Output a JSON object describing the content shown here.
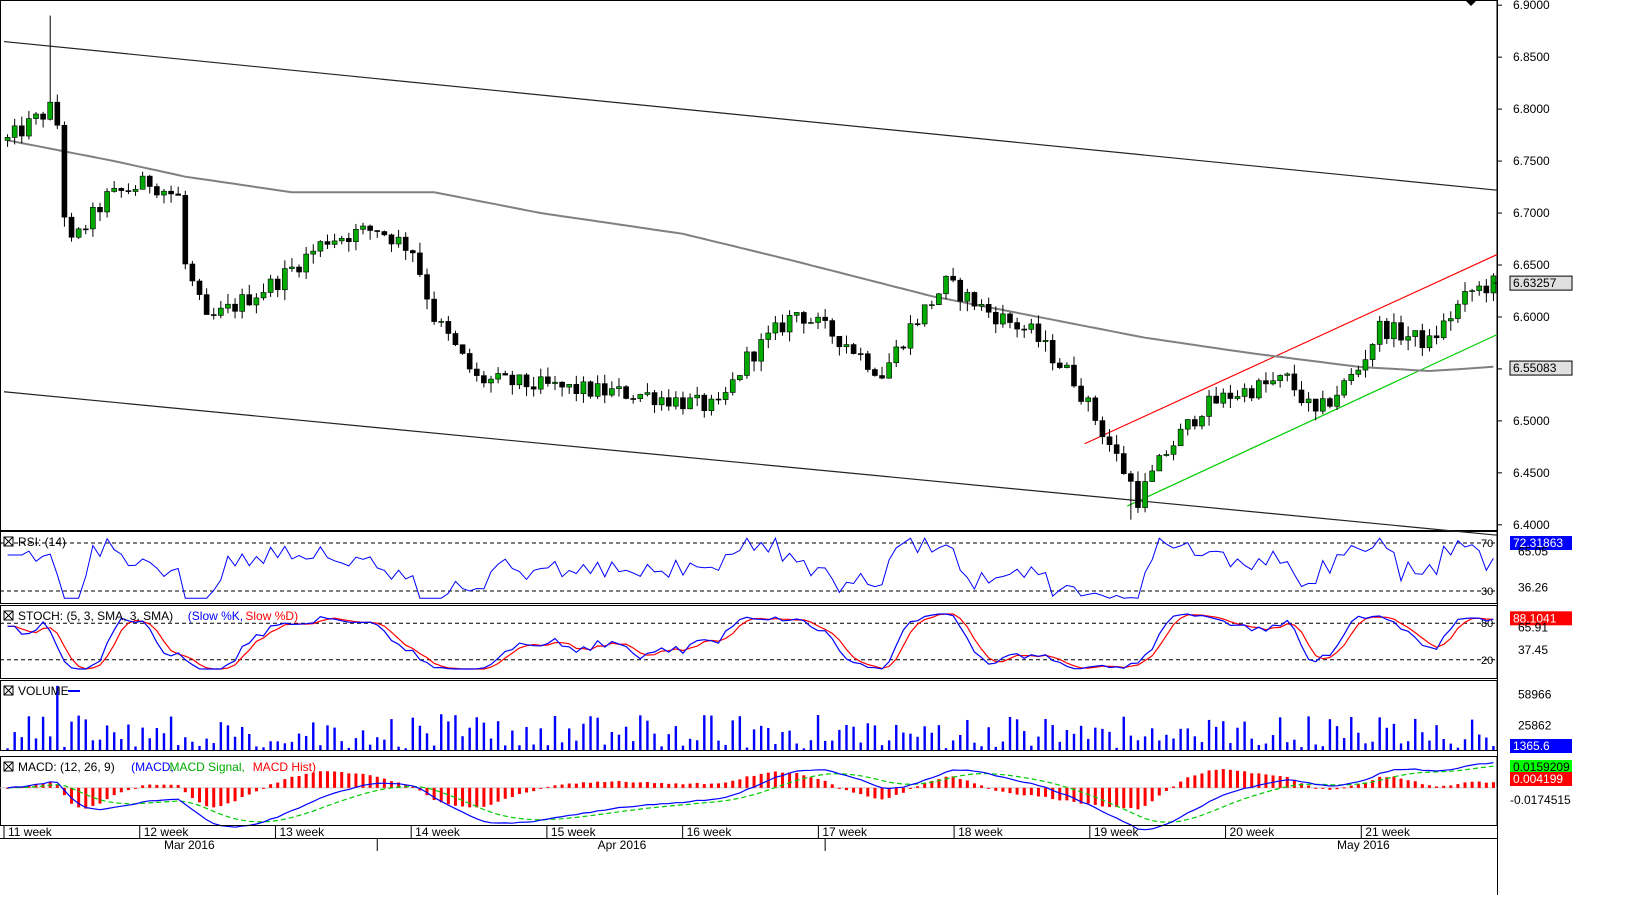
{
  "chart_data": {
    "type": "candlestick",
    "main": {
      "yticks": [
        "6.9000",
        "6.8500",
        "6.8000",
        "6.7500",
        "6.7000",
        "6.6500",
        "6.6000",
        "6.5500",
        "6.5000",
        "6.4500",
        "6.4000"
      ],
      "ylim": [
        6.395,
        6.905
      ],
      "badges": [
        {
          "label": "6.63257",
          "value": 6.63257,
          "bg": "#e0e0e0",
          "fg": "#000000"
        },
        {
          "label": "6.55083",
          "value": 6.55083,
          "bg": "#e0e0e0",
          "fg": "#000000"
        }
      ],
      "candle_count": 210,
      "ohlc_start": 6.77,
      "anchors": [
        [
          0,
          6.77
        ],
        [
          6,
          6.8
        ],
        [
          7,
          6.785
        ],
        [
          8,
          6.7
        ],
        [
          9,
          6.67
        ],
        [
          14,
          6.715
        ],
        [
          20,
          6.73
        ],
        [
          24,
          6.715
        ],
        [
          25,
          6.65
        ],
        [
          28,
          6.595
        ],
        [
          33,
          6.615
        ],
        [
          38,
          6.635
        ],
        [
          45,
          6.675
        ],
        [
          52,
          6.685
        ],
        [
          57,
          6.665
        ],
        [
          60,
          6.6
        ],
        [
          66,
          6.54
        ],
        [
          80,
          6.53
        ],
        [
          90,
          6.525
        ],
        [
          100,
          6.512
        ],
        [
          104,
          6.56
        ],
        [
          111,
          6.605
        ],
        [
          118,
          6.575
        ],
        [
          123,
          6.545
        ],
        [
          127,
          6.59
        ],
        [
          132,
          6.632
        ],
        [
          138,
          6.605
        ],
        [
          144,
          6.585
        ],
        [
          150,
          6.54
        ],
        [
          154,
          6.49
        ],
        [
          158,
          6.44
        ],
        [
          159,
          6.425
        ],
        [
          163,
          6.47
        ],
        [
          168,
          6.512
        ],
        [
          172,
          6.525
        ],
        [
          180,
          6.54
        ],
        [
          184,
          6.505
        ],
        [
          190,
          6.55
        ],
        [
          193,
          6.59
        ],
        [
          200,
          6.575
        ],
        [
          204,
          6.61
        ],
        [
          206,
          6.625
        ],
        [
          209,
          6.632
        ]
      ],
      "ma_anchors": [
        [
          0,
          6.77
        ],
        [
          15,
          6.75
        ],
        [
          25,
          6.735
        ],
        [
          40,
          6.72
        ],
        [
          60,
          6.72
        ],
        [
          75,
          6.7
        ],
        [
          95,
          6.68
        ],
        [
          110,
          6.655
        ],
        [
          130,
          6.62
        ],
        [
          145,
          6.6
        ],
        [
          160,
          6.58
        ],
        [
          175,
          6.565
        ],
        [
          190,
          6.552
        ],
        [
          200,
          6.548
        ],
        [
          209,
          6.552
        ]
      ],
      "trendlines": [
        {
          "x1": 0,
          "y1": 6.865,
          "x2": 209,
          "y2": 6.722,
          "color": "#222222"
        },
        {
          "x1": 0,
          "y1": 6.528,
          "x2": 209,
          "y2": 6.39,
          "color": "#222222"
        },
        {
          "x1": 152,
          "y1": 6.478,
          "x2": 209,
          "y2": 6.66,
          "color": "#ff0000"
        },
        {
          "x1": 158,
          "y1": 6.418,
          "x2": 209,
          "y2": 6.583,
          "color": "#00cc00"
        }
      ]
    },
    "rsi": {
      "label": "RSI: (14)",
      "levels": [
        70,
        30
      ],
      "ticks": [
        "65.05",
        "36.26"
      ],
      "badge": {
        "label": "72.31863",
        "bg": "#0000ff",
        "fg": "#ffffff"
      },
      "ylim": [
        20,
        80
      ]
    },
    "stoch": {
      "label": "STOCH: (5, 3, SMA, 3, SMA)",
      "series": [
        {
          "name": "Slow %K",
          "color": "#0000ff"
        },
        {
          "name": "Slow %D",
          "color": "#ff0000"
        }
      ],
      "levels": [
        80,
        20
      ],
      "ticks": [
        "65.91",
        "37.45"
      ],
      "badge": {
        "label": "88.1041",
        "bg": "#ff0000",
        "fg": "#ffffff"
      },
      "ylim": [
        0,
        100
      ]
    },
    "volume": {
      "label": "VOLUME",
      "ticks": [
        "58966",
        "25862"
      ],
      "badge": {
        "label": "1365.6",
        "bg": "#0000ff",
        "fg": "#ffffff"
      },
      "ylim": [
        0,
        70000
      ]
    },
    "macd": {
      "label": "MACD: (12, 26, 9)",
      "series": [
        {
          "name": "MACD",
          "color": "#0000ff"
        },
        {
          "name": "MACD Signal",
          "color": "#00aa00"
        },
        {
          "name": "MACD Hist",
          "color": "#ff0000"
        }
      ],
      "ticks": [
        "-0.0174515"
      ],
      "badges": [
        {
          "label": "0.0159209",
          "bg": "#00ff00",
          "fg": "#000000"
        },
        {
          "label": "0.004199",
          "bg": "#ff0000",
          "fg": "#ffffff"
        }
      ],
      "ylim": [
        -0.035,
        0.03
      ]
    },
    "xaxis": {
      "weeks": [
        "11 week",
        "12 week",
        "13 week",
        "14 week",
        "15 week",
        "16 week",
        "17 week",
        "18 week",
        "19 week",
        "20 week",
        "21 week"
      ],
      "months": [
        {
          "label": "Mar 2016",
          "at": 22
        },
        {
          "label": "Apr 2016",
          "at": 83
        },
        {
          "label": "May 2016",
          "at": 187
        }
      ],
      "month_seps": [
        52,
        115
      ]
    },
    "last_price": 6.63257
  }
}
